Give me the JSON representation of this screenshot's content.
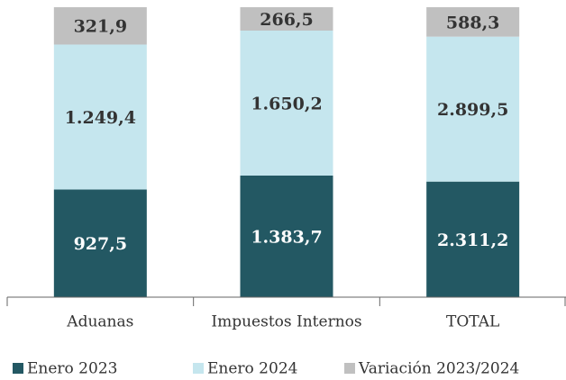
{
  "chart_data": {
    "type": "bar",
    "stacking": "percent",
    "categories": [
      "Aduanas",
      "Impuestos Internos",
      "TOTAL"
    ],
    "series": [
      {
        "name": "Enero 2023",
        "color": "#235863",
        "values": [
          927.5,
          1383.7,
          2311.2
        ],
        "value_labels": [
          "927,5",
          "1.383,7",
          "2.311,2"
        ]
      },
      {
        "name": "Enero 2024",
        "color": "#c5e6ee",
        "values": [
          1249.4,
          1650.2,
          2899.5
        ],
        "value_labels": [
          "1.249,4",
          "1.650,2",
          "2.899,5"
        ]
      },
      {
        "name": "Variación 2023/2024",
        "color": "#c0c0c0",
        "values": [
          321.9,
          266.5,
          588.3
        ],
        "value_labels": [
          "321,9",
          "266,5",
          "588,3"
        ]
      }
    ]
  }
}
